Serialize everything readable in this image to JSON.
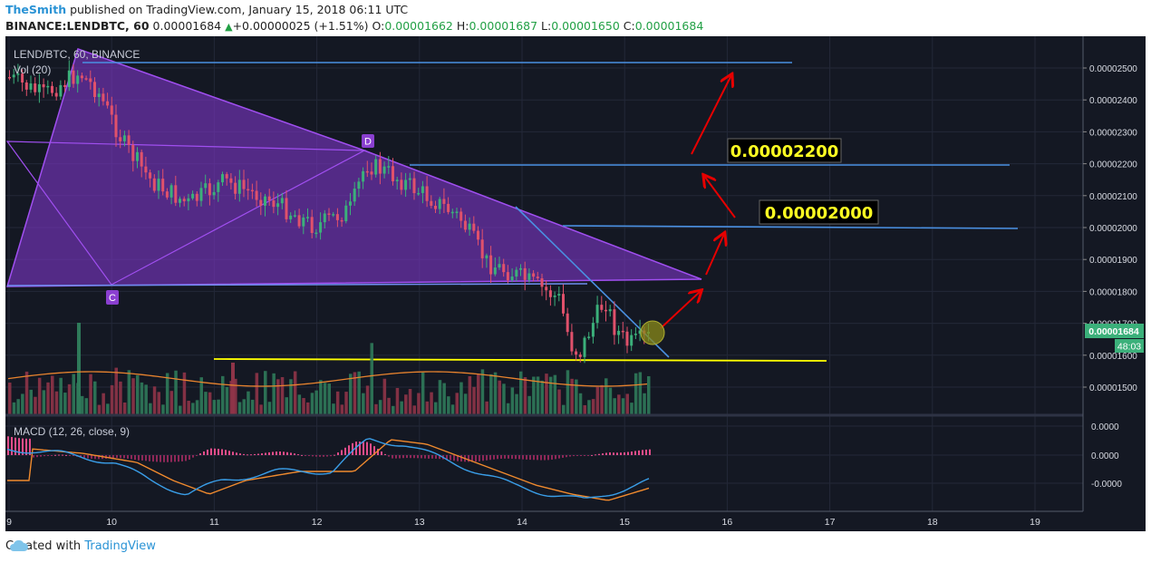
{
  "header": {
    "author": "TheSmith",
    "published_text": "published on TradingView.com, January 15, 2018 06:11 UTC",
    "symbol": "BINANCE:LENDBTC, 60",
    "last_price": "0.00001684",
    "change": "+0.00000025 (+1.51%)",
    "ohlc": {
      "o_label": "O:",
      "o_value": "0.00001662",
      "h_label": "H:",
      "h_value": "0.00001687",
      "l_label": "L:",
      "l_value": "0.00001650",
      "c_label": "C:",
      "c_value": "0.00001684"
    }
  },
  "chart": {
    "pane_title": "LEND/BTC, 60, BINANCE",
    "volume_label": "Vol (20)",
    "macd_label": "MACD (12, 26, close, 9)",
    "price_axis_labels": [
      "0.00002500",
      "0.00002400",
      "0.00002300",
      "0.00002200",
      "0.00002100",
      "0.00002000",
      "0.00001900",
      "0.00001800",
      "0.00001700",
      "0.00001600",
      "0.00001500"
    ],
    "macd_axis_labels": [
      "0.0000",
      "0.0000",
      "-0.0000"
    ],
    "time_axis_labels": [
      "9",
      "10",
      "11",
      "12",
      "13",
      "14",
      "15",
      "16",
      "17",
      "18",
      "19"
    ],
    "current_price_tag": "0.00001684",
    "countdown_tag": "48:03",
    "annotation_target_1": "0.00002200",
    "annotation_target_2": "0.00002000",
    "point_label_c": "C",
    "point_label_d": "D",
    "colors": {
      "background": "#141823",
      "up_candle": "#3bb07a",
      "down_candle": "#e0516b",
      "pattern_fill": "#8a3fd0",
      "trendline": "#4a90e2",
      "support_line": "#ffff00",
      "arrow": "#e60000"
    }
  },
  "chart_data": {
    "type": "line",
    "title": "LEND/BTC, 60, BINANCE",
    "x": [
      "9",
      "10",
      "11",
      "12",
      "13",
      "14",
      "15",
      "15.3"
    ],
    "series": [
      {
        "values": [
          2.5e-05,
          2.3e-05,
          2.15e-05,
          2.1e-05,
          2.2e-05,
          2e-05,
          1.62e-05,
          1.684e-05
        ]
      }
    ],
    "ylim": [
      1.45e-05,
      2.63e-05
    ],
    "levels": {
      "resistance_top": 2.52e-05,
      "target_1": 2.2e-05,
      "target_2": 2e-05,
      "support": 1.6e-05
    }
  },
  "footer": {
    "created_with": "Created with",
    "brand": "TradingView"
  }
}
